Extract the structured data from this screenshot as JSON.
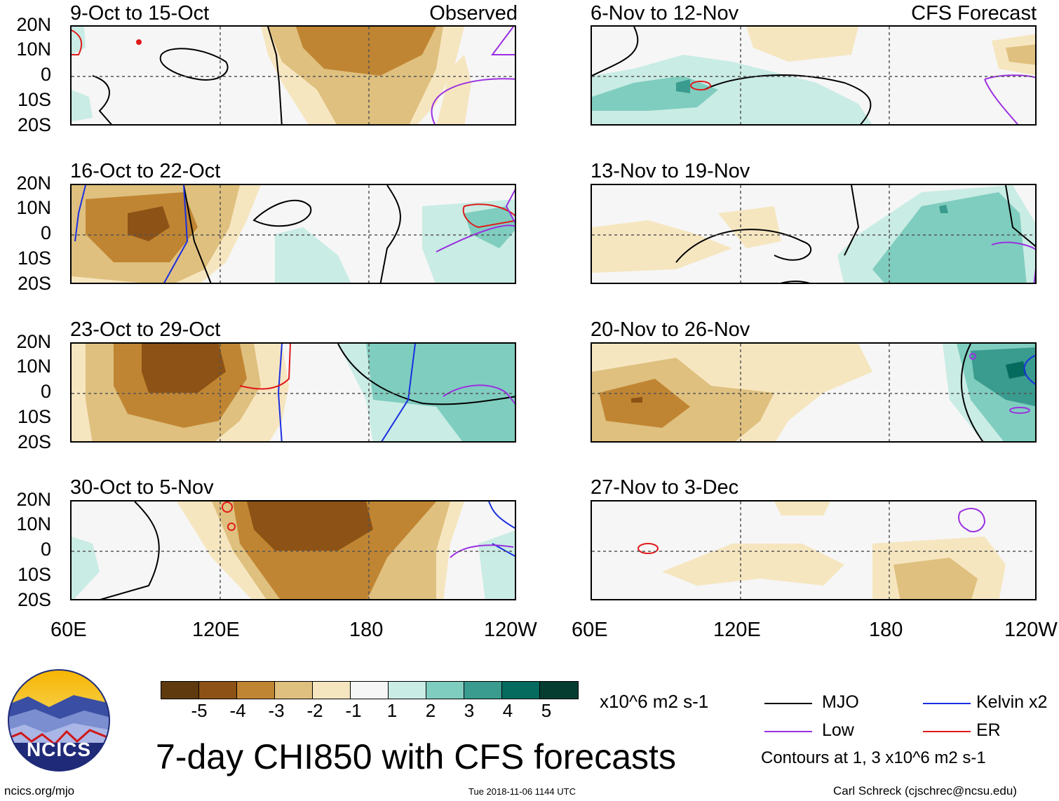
{
  "title": "7-day CHI850 with CFS forecasts",
  "units": "x10^6 m2 s-1",
  "observed_label": "Observed",
  "forecast_label": "CFS Forecast",
  "lat_labels": [
    "20N",
    "10N",
    "0",
    "10S",
    "20S"
  ],
  "lon_labels": [
    "60E",
    "120E",
    "180",
    "120W"
  ],
  "panels_left": [
    {
      "title": "9-Oct to 15-Oct"
    },
    {
      "title": "16-Oct to 22-Oct"
    },
    {
      "title": "23-Oct to 29-Oct"
    },
    {
      "title": "30-Oct to 5-Nov"
    }
  ],
  "panels_right": [
    {
      "title": "6-Nov to 12-Nov"
    },
    {
      "title": "13-Nov to 19-Nov"
    },
    {
      "title": "20-Nov to 26-Nov"
    },
    {
      "title": "27-Nov to 3-Dec"
    }
  ],
  "colorbar": {
    "colors": [
      "#5e3a0e",
      "#8d5215",
      "#c08533",
      "#dfc07f",
      "#f6e6c0",
      "#f6f6f6",
      "#c9ece4",
      "#7fcdbf",
      "#3a9b8f",
      "#046b5e",
      "#053d31"
    ],
    "ticks": [
      "-5",
      "-4",
      "-3",
      "-2",
      "-1",
      "1",
      "2",
      "3",
      "4",
      "5"
    ]
  },
  "legend": {
    "items": [
      {
        "label": "MJO",
        "color": "#000000"
      },
      {
        "label": "Kelvin x2",
        "color": "#1a2ee0"
      },
      {
        "label": "Low",
        "color": "#9b30e0"
      },
      {
        "label": "ER",
        "color": "#e01a1a"
      }
    ],
    "contours_note": "Contours at 1, 3 x10^6 m2 s-1"
  },
  "logo_text": "NCICS",
  "footer": {
    "url": "ncics.org/mjo",
    "timestamp": "Tue 2018-11-06 1144 UTC",
    "credit": "Carl Schreck (cjschrec@ncsu.edu)"
  }
}
